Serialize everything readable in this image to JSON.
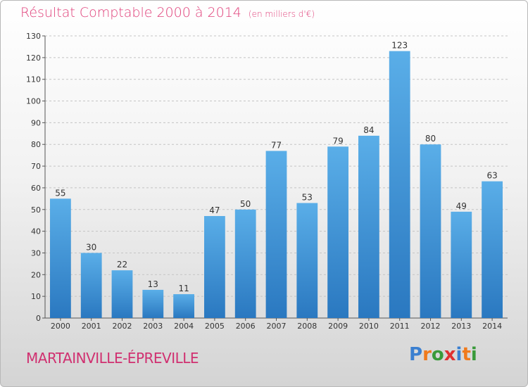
{
  "header": {
    "title": "Résultat Comptable 2000 à 2014",
    "unit": "(en milliers d'€)"
  },
  "footer": {
    "commune": "MARTAINVILLE-ÉPREVILLE",
    "logo_letters": [
      "P",
      "r",
      "o",
      "x",
      "i",
      "t",
      "i"
    ],
    "logo_colors": [
      "#3a7fd0",
      "#f07a1c",
      "#3a9a3a",
      "#e03030",
      "#3a7fd0",
      "#f07a1c",
      "#3a9a3a"
    ]
  },
  "chart_data": {
    "type": "bar",
    "categories": [
      "2000",
      "2001",
      "2002",
      "2003",
      "2004",
      "2005",
      "2006",
      "2007",
      "2008",
      "2009",
      "2010",
      "2011",
      "2012",
      "2013",
      "2014"
    ],
    "values": [
      55,
      30,
      22,
      13,
      11,
      47,
      50,
      77,
      53,
      79,
      84,
      123,
      80,
      49,
      63
    ],
    "ylim": [
      0,
      130
    ],
    "yticks": [
      0,
      10,
      20,
      30,
      40,
      50,
      60,
      70,
      80,
      90,
      100,
      110,
      120,
      130
    ],
    "grid": true,
    "bar_color_top": "#5aaee8",
    "bar_color_bottom": "#2a78c0"
  }
}
